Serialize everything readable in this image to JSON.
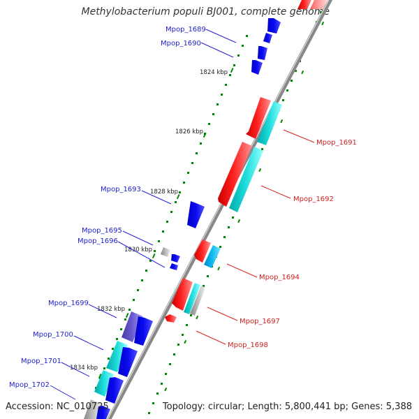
{
  "title": "Methylobacterium populi BJ001, complete genome",
  "footer": {
    "accession": "Accession: NC_010725",
    "topology": "Topology: circular; Length: 5,800,441 bp; Genes: 5,388"
  },
  "colors": {
    "plus_strand": "#ff0000",
    "minus_strand": "#0000ee",
    "rna": "#00cccc",
    "other": "#999999",
    "backbone": "#888888",
    "ticks": "#008800"
  },
  "kbp_marks": [
    "1824 kbp",
    "1826 kbp",
    "1828 kbp",
    "1830 kbp",
    "1832 kbp",
    "1834 kbp"
  ],
  "gene_labels_left": [
    "Mpop_1689",
    "Mpop_1690",
    "Mpop_1693",
    "Mpop_1695",
    "Mpop_1696",
    "Mpop_1699",
    "Mpop_1700",
    "Mpop_1701",
    "Mpop_1702"
  ],
  "gene_labels_right": [
    "Mpop_1691",
    "Mpop_1692",
    "Mpop_1694",
    "Mpop_1697",
    "Mpop_1698"
  ]
}
